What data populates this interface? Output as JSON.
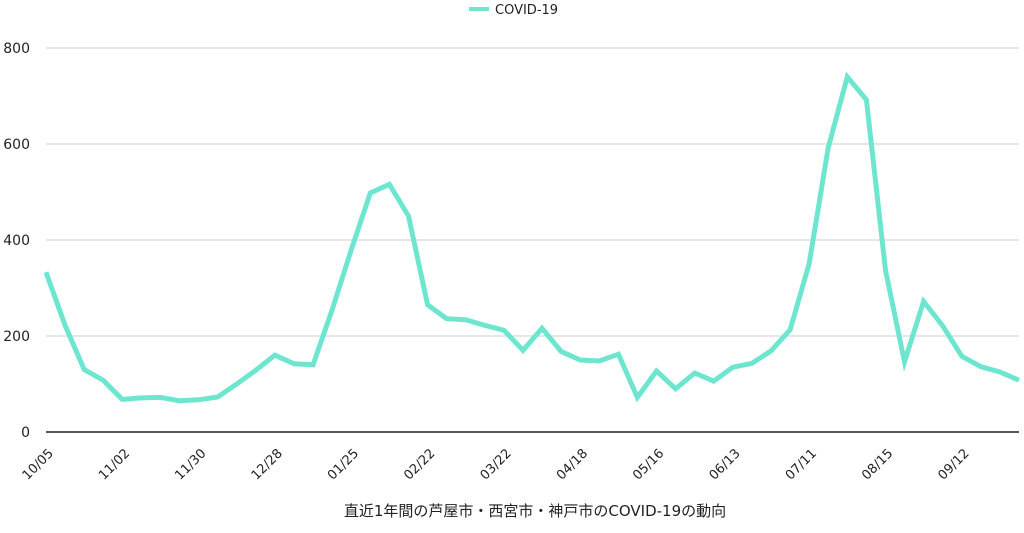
{
  "chart_data": {
    "type": "line",
    "title": "直近1年間の芦屋市・西宮市・神戸市のCOVID-19の動向",
    "xlabel": "",
    "ylabel": "",
    "ylim": [
      0,
      800
    ],
    "yticks": [
      0,
      200,
      400,
      600,
      800
    ],
    "grid": true,
    "legend_position": "top-center",
    "categories": [
      "10/05",
      "",
      "",
      "",
      "11/02",
      "",
      "",
      "",
      "11/30",
      "",
      "",
      "",
      "12/28",
      "",
      "",
      "",
      "01/25",
      "",
      "",
      "",
      "02/22",
      "",
      "",
      "",
      "03/22",
      "",
      "",
      "",
      "04/18",
      "",
      "",
      "",
      "05/16",
      "",
      "",
      "",
      "06/13",
      "",
      "",
      "",
      "07/11",
      "",
      "",
      "",
      "08/15",
      "",
      "",
      "",
      "09/12",
      "",
      "",
      ""
    ],
    "series": [
      {
        "name": "COVID-19",
        "color": "#6ee6cf",
        "values": [
          333,
          222,
          130,
          108,
          68,
          71,
          72,
          65,
          67,
          73,
          100,
          129,
          160,
          142,
          140,
          255,
          380,
          498,
          516,
          450,
          265,
          236,
          234,
          222,
          212,
          170,
          216,
          168,
          150,
          148,
          162,
          72,
          127,
          90,
          123,
          106,
          135,
          143,
          169,
          213,
          350,
          592,
          740,
          692,
          337,
          146,
          272,
          221,
          158,
          136,
          125,
          108
        ]
      }
    ]
  }
}
